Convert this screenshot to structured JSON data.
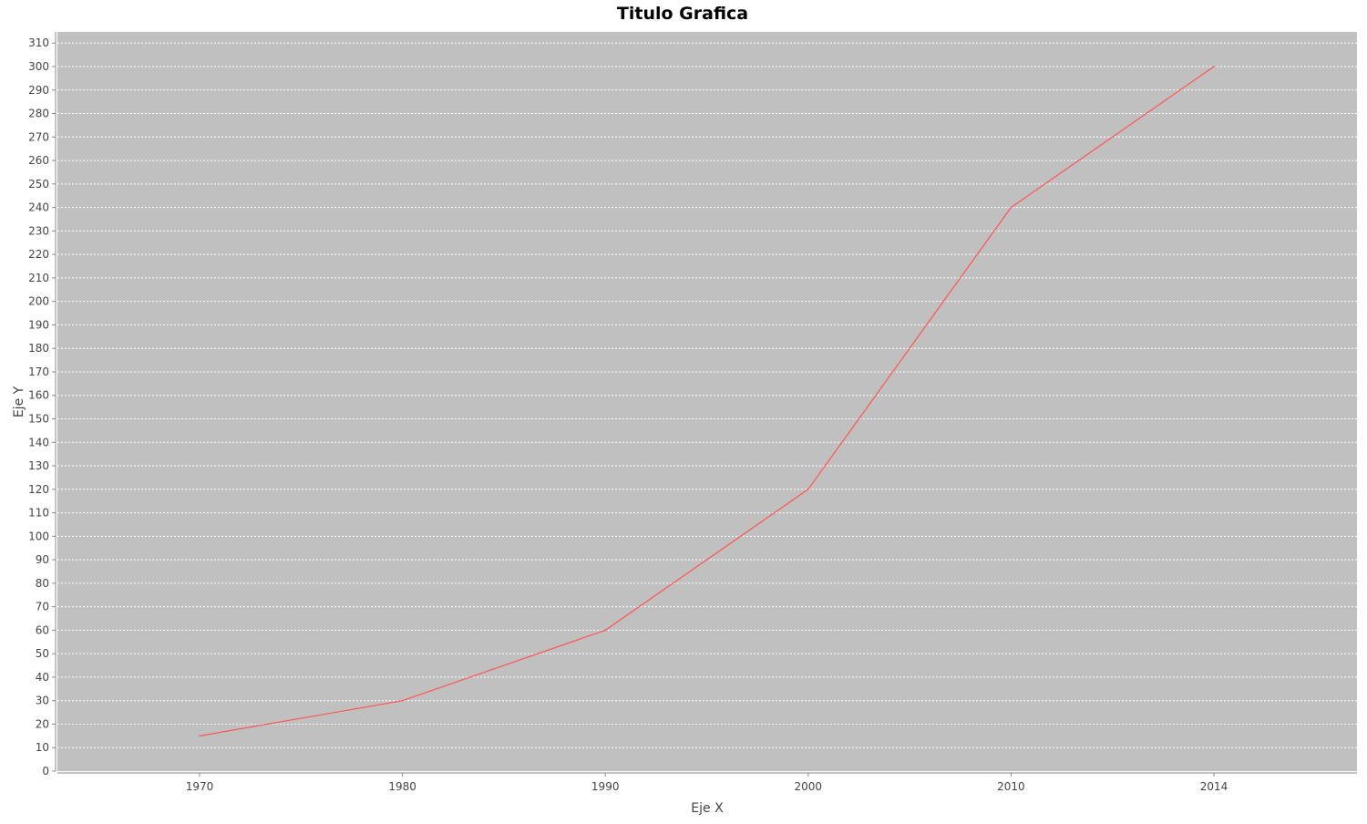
{
  "chart_data": {
    "type": "line",
    "title": "Titulo Grafica",
    "xlabel": "Eje X",
    "ylabel": "Eje Y",
    "categories": [
      "1970",
      "1980",
      "1990",
      "2000",
      "2010",
      "2014"
    ],
    "series": [
      {
        "values": [
          15,
          30,
          60,
          120,
          240,
          300
        ],
        "color": "#ff5555"
      }
    ],
    "ylim": [
      0,
      315
    ],
    "yticks": [
      0,
      10,
      20,
      30,
      40,
      50,
      60,
      70,
      80,
      90,
      100,
      110,
      120,
      130,
      140,
      150,
      160,
      170,
      180,
      190,
      200,
      210,
      220,
      230,
      240,
      250,
      260,
      270,
      280,
      290,
      300,
      310
    ],
    "grid": true,
    "legend": "none",
    "plot_background": "#c0c0c0",
    "grid_color": "#ffffff"
  }
}
